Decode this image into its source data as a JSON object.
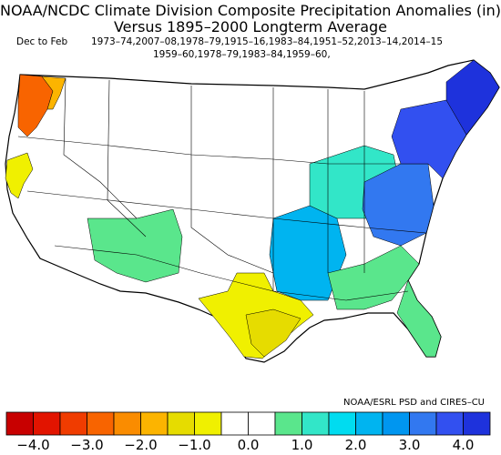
{
  "title": {
    "line1": "NOAA/NCDC Climate Division Composite Precipitation Anomalies (in)",
    "line2": "Versus 1895–2000 Longterm Average"
  },
  "subtitle": {
    "season": "Dec to Feb",
    "years_line1": "1973–74,2007–08,1978–79,1915–16,1983–84,1951–52,2013–14,2014–15",
    "years_line2": "1959–60,1978–79,1983–84,1959–60,"
  },
  "credit": "NOAA/ESRL PSD and CIRES–CU",
  "legend": {
    "colors": [
      "#c80000",
      "#e21400",
      "#f03c00",
      "#f86400",
      "#fa8c00",
      "#fcb400",
      "#e6dc00",
      "#f0f000",
      "#ffffff",
      "#ffffff",
      "#5ae68c",
      "#32e6c8",
      "#00dcf0",
      "#00b4f0",
      "#0096f0",
      "#3278f0",
      "#3250f0",
      "#1e32dc"
    ],
    "labels": [
      "−4.0",
      "−3.0",
      "−2.0",
      "−1.0",
      "0.0",
      "1.0",
      "2.0",
      "3.0",
      "4.0"
    ]
  },
  "map": {
    "regions": [
      {
        "name": "pacific-northwest-coast",
        "color": "#f86400"
      },
      {
        "name": "pacific-northwest-inner",
        "color": "#fcb400"
      },
      {
        "name": "north-california-coast",
        "color": "#f0f000"
      },
      {
        "name": "texas-south",
        "color": "#f0f000"
      },
      {
        "name": "texas-gulf",
        "color": "#e6dc00"
      },
      {
        "name": "southwest",
        "color": "#5ae68c"
      },
      {
        "name": "mississippi-valley",
        "color": "#00b4f0"
      },
      {
        "name": "ohio-valley",
        "color": "#32e6c8"
      },
      {
        "name": "appalachians",
        "color": "#3278f0"
      },
      {
        "name": "northeast",
        "color": "#3250f0"
      },
      {
        "name": "new-england",
        "color": "#1e32dc"
      },
      {
        "name": "southeast",
        "color": "#5ae68c"
      },
      {
        "name": "florida",
        "color": "#5ae68c"
      }
    ]
  }
}
